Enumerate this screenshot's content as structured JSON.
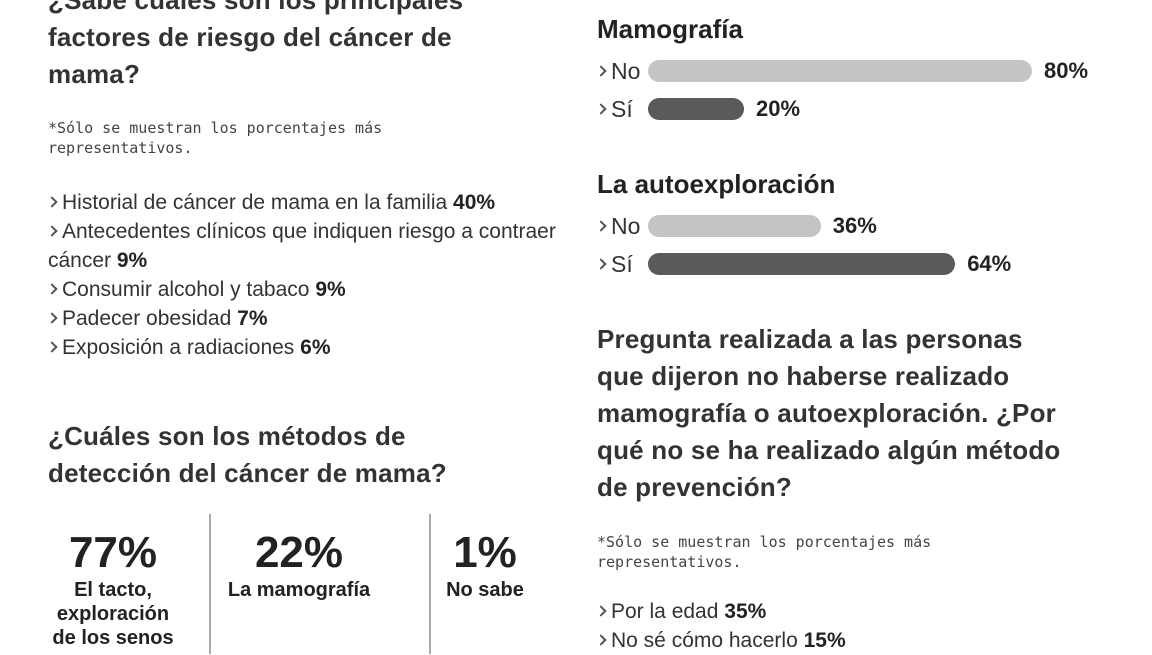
{
  "left": {
    "question1": "¿Sabe cuáles son los principales factores de riesgo del cáncer de mama?",
    "note1": "*Sólo se muestran los porcentajes más representativos.",
    "factors": [
      {
        "text": "Historial de cáncer de mama en la familia",
        "value": "40%"
      },
      {
        "text": "Antecedentes clínicos que indiquen riesgo a contraer cáncer",
        "value": "9%"
      },
      {
        "text": "Consumir alcohol y tabaco",
        "value": "9%"
      },
      {
        "text": "Padecer obesidad",
        "value": "7%"
      },
      {
        "text": "Exposición a radiaciones",
        "value": "6%"
      }
    ],
    "question2": "¿Cuáles son los métodos de detección del cáncer de mama?",
    "methods": [
      {
        "value": "77%",
        "label": "El tacto, exploración de los senos"
      },
      {
        "value": "22%",
        "label": "La mamografía"
      },
      {
        "value": "1%",
        "label": "No sabe"
      }
    ]
  },
  "right": {
    "charts": [
      {
        "type": "bar",
        "title": "Mamografía",
        "categories": [
          "No",
          "Sí"
        ],
        "values": [
          80,
          20
        ],
        "value_labels": [
          "80%",
          "20%"
        ],
        "colors": [
          "#c4c4c4",
          "#5a5a5a"
        ]
      },
      {
        "type": "bar",
        "title": "La autoexploración",
        "categories": [
          "No",
          "Sí"
        ],
        "values": [
          36,
          64
        ],
        "value_labels": [
          "36%",
          "64%"
        ],
        "colors": [
          "#c4c4c4",
          "#5a5a5a"
        ]
      }
    ],
    "question3": "Pregunta realizada a las personas que dijeron no haberse realizado mamografía o autoexploración. ¿Por qué no se ha realizado algún método de prevención?",
    "note2": "*Sólo se muestran los porcentajes más representativos.",
    "reasons": [
      {
        "text": "Por la edad",
        "value": "35%"
      },
      {
        "text": "No sé cómo hacerlo",
        "value": "15%"
      }
    ]
  }
}
